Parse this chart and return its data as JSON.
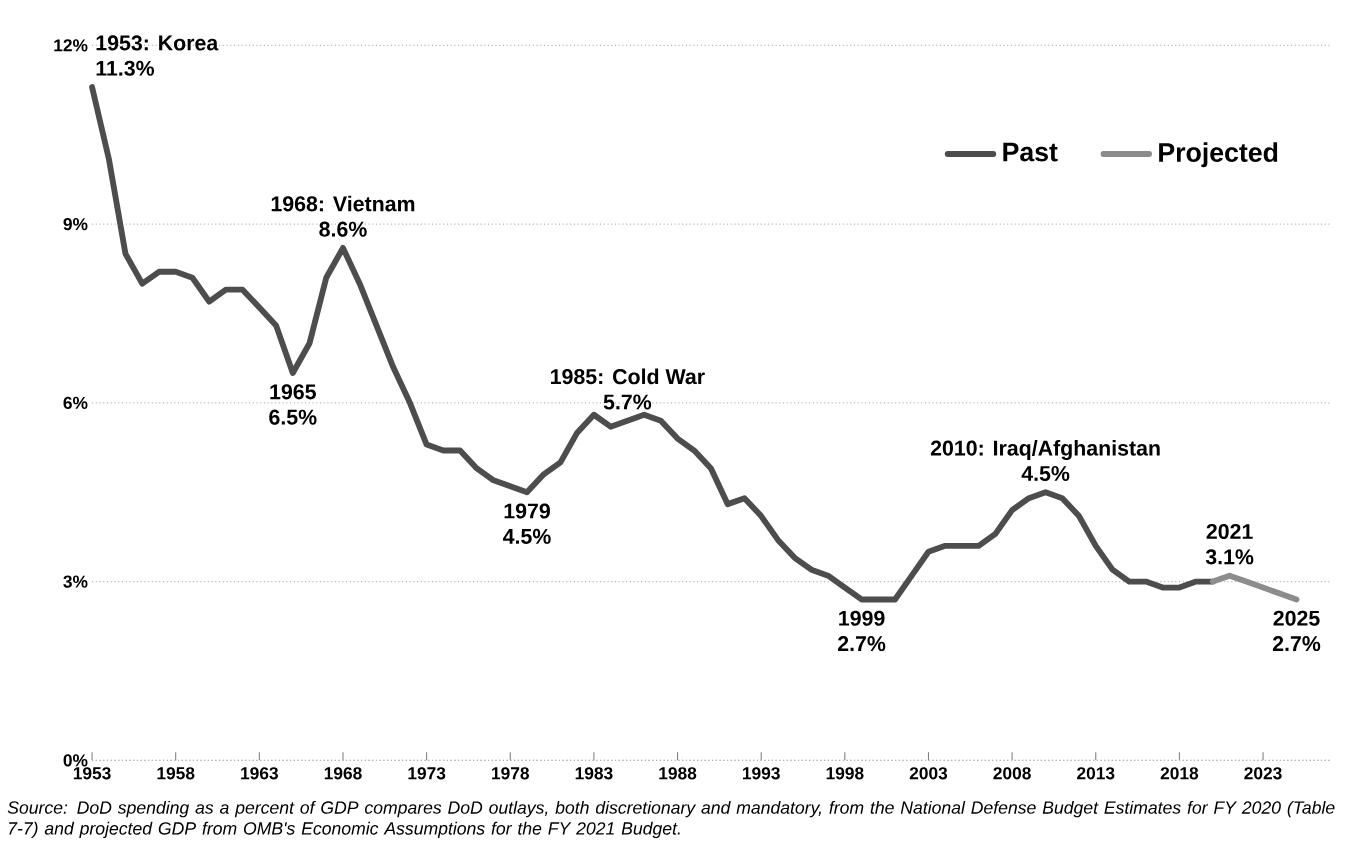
{
  "chart_data": {
    "type": "line",
    "x": [
      1953,
      1954,
      1955,
      1956,
      1957,
      1958,
      1959,
      1960,
      1961,
      1962,
      1963,
      1964,
      1965,
      1966,
      1967,
      1968,
      1969,
      1970,
      1971,
      1972,
      1973,
      1974,
      1975,
      1976,
      1977,
      1978,
      1979,
      1980,
      1981,
      1982,
      1983,
      1984,
      1985,
      1986,
      1987,
      1988,
      1989,
      1990,
      1991,
      1992,
      1993,
      1994,
      1995,
      1996,
      1997,
      1998,
      1999,
      2000,
      2001,
      2002,
      2003,
      2004,
      2005,
      2006,
      2007,
      2008,
      2009,
      2010,
      2011,
      2012,
      2013,
      2014,
      2015,
      2016,
      2017,
      2018,
      2019,
      2020,
      2021,
      2022,
      2023,
      2024,
      2025
    ],
    "series": [
      {
        "name": "Past",
        "color": "#4d4d4d",
        "values": [
          11.3,
          10.1,
          8.5,
          8.0,
          8.2,
          8.2,
          8.1,
          7.7,
          7.9,
          7.9,
          7.6,
          7.3,
          6.5,
          7.0,
          8.1,
          8.6,
          8.0,
          7.3,
          6.6,
          6.0,
          5.3,
          5.2,
          5.2,
          4.9,
          4.7,
          4.6,
          4.5,
          4.8,
          5.0,
          5.5,
          5.8,
          5.6,
          5.7,
          5.8,
          5.7,
          5.4,
          5.2,
          4.9,
          4.3,
          4.4,
          4.1,
          3.7,
          3.4,
          3.2,
          3.1,
          2.9,
          2.7,
          2.7,
          2.7,
          3.1,
          3.5,
          3.6,
          3.6,
          3.6,
          3.8,
          4.2,
          4.4,
          4.5,
          4.4,
          4.1,
          3.6,
          3.2,
          3.0,
          3.0,
          2.9,
          2.9,
          3.0,
          3.0,
          null,
          null,
          null,
          null,
          null
        ]
      },
      {
        "name": "Projected",
        "color": "#8c8c8c",
        "values": [
          null,
          null,
          null,
          null,
          null,
          null,
          null,
          null,
          null,
          null,
          null,
          null,
          null,
          null,
          null,
          null,
          null,
          null,
          null,
          null,
          null,
          null,
          null,
          null,
          null,
          null,
          null,
          null,
          null,
          null,
          null,
          null,
          null,
          null,
          null,
          null,
          null,
          null,
          null,
          null,
          null,
          null,
          null,
          null,
          null,
          null,
          null,
          null,
          null,
          null,
          null,
          null,
          null,
          null,
          null,
          null,
          null,
          null,
          null,
          null,
          null,
          null,
          null,
          null,
          null,
          null,
          null,
          3.0,
          3.1,
          3.0,
          2.9,
          2.8,
          2.7
        ]
      }
    ],
    "xlim": [
      1953,
      2027
    ],
    "xticks": [
      1953,
      1958,
      1963,
      1968,
      1973,
      1978,
      1983,
      1988,
      1993,
      1998,
      2003,
      2008,
      2013,
      2018,
      2023
    ],
    "ylim": [
      0,
      12
    ],
    "yticks": [
      {
        "value": 0,
        "label": "0%"
      },
      {
        "value": 3,
        "label": "3%"
      },
      {
        "value": 6,
        "label": "6%"
      },
      {
        "value": 9,
        "label": "9%"
      },
      {
        "value": 12,
        "label": "12%"
      }
    ],
    "grid": "y",
    "legend": "top right",
    "marker": "none",
    "line_style": "solid",
    "annotations": [
      {
        "text": "1953: Korea",
        "x": 1953,
        "y": 11.3
      },
      {
        "text": "11.3%",
        "x": 1953,
        "y": 11.3
      },
      {
        "text": "1965",
        "x": 1965,
        "y": 6.5
      },
      {
        "text": "6.5%",
        "x": 1965,
        "y": 6.5
      },
      {
        "text": "1968: Vietnam",
        "x": 1968,
        "y": 8.6
      },
      {
        "text": "8.6%",
        "x": 1968,
        "y": 8.6
      },
      {
        "text": "1979",
        "x": 1979,
        "y": 4.5
      },
      {
        "text": "4.5%",
        "x": 1979,
        "y": 4.5
      },
      {
        "text": "1985: Cold War",
        "x": 1985,
        "y": 5.7
      },
      {
        "text": "5.7%",
        "x": 1985,
        "y": 5.7
      },
      {
        "text": "1999",
        "x": 1999,
        "y": 2.7
      },
      {
        "text": "2.7%",
        "x": 1999,
        "y": 2.7
      },
      {
        "text": "2010: Iraq/Afghanistan",
        "x": 2010,
        "y": 4.5
      },
      {
        "text": "4.5%",
        "x": 2010,
        "y": 4.5
      },
      {
        "text": "2021",
        "x": 2021,
        "y": 3.1
      },
      {
        "text": "3.1%",
        "x": 2021,
        "y": 3.1
      },
      {
        "text": "2025",
        "x": 2025,
        "y": 2.7
      },
      {
        "text": "2.7%",
        "x": 2025,
        "y": 2.7
      },
      "Source: DoD spending as a percent of GDP compares DoD outlays, both discretionary and mandatory, from the National Defense Budget Estimates for FY 2020 (Table 7-7) and projected GDP from OMB's Economic Assumptions for the FY 2021 Budget."
    ]
  }
}
